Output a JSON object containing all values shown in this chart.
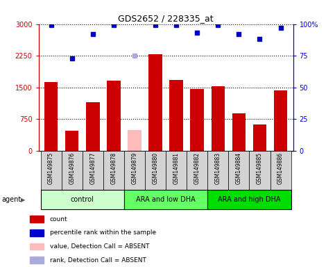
{
  "title": "GDS2652 / 228335_at",
  "samples": [
    "GSM149875",
    "GSM149876",
    "GSM149877",
    "GSM149878",
    "GSM149879",
    "GSM149880",
    "GSM149881",
    "GSM149882",
    "GSM149883",
    "GSM149884",
    "GSM149885",
    "GSM149886"
  ],
  "bar_values": [
    1620,
    480,
    1150,
    1660,
    500,
    2280,
    1680,
    1460,
    1530,
    880,
    620,
    1430
  ],
  "bar_colors": [
    "#cc0000",
    "#cc0000",
    "#cc0000",
    "#cc0000",
    "#ffbbbb",
    "#cc0000",
    "#cc0000",
    "#cc0000",
    "#cc0000",
    "#cc0000",
    "#cc0000",
    "#cc0000"
  ],
  "dot_values": [
    99,
    73,
    92,
    99,
    75,
    99,
    99,
    93,
    99,
    92,
    88,
    97
  ],
  "dot_colors": [
    "#0000cc",
    "#0000cc",
    "#0000cc",
    "#0000cc",
    "#aaaadd",
    "#0000cc",
    "#0000cc",
    "#0000cc",
    "#0000cc",
    "#0000cc",
    "#0000cc",
    "#0000cc"
  ],
  "ylim_left": [
    0,
    3000
  ],
  "ylim_right": [
    0,
    100
  ],
  "yticks_left": [
    0,
    750,
    1500,
    2250,
    3000
  ],
  "yticks_right": [
    0,
    25,
    50,
    75,
    100
  ],
  "ytick_labels_left": [
    "0",
    "750",
    "1500",
    "2250",
    "3000"
  ],
  "ytick_labels_right": [
    "0",
    "25",
    "50",
    "75",
    "100%"
  ],
  "groups": [
    {
      "label": "control",
      "start": 0,
      "end": 3,
      "color": "#ccffcc"
    },
    {
      "label": "ARA and low DHA",
      "start": 4,
      "end": 7,
      "color": "#66ff66"
    },
    {
      "label": "ARA and high DHA",
      "start": 8,
      "end": 11,
      "color": "#00dd00"
    }
  ],
  "agent_label": "agent",
  "legend_items": [
    {
      "color": "#cc0000",
      "label": "count"
    },
    {
      "color": "#0000cc",
      "label": "percentile rank within the sample"
    },
    {
      "color": "#ffbbbb",
      "label": "value, Detection Call = ABSENT"
    },
    {
      "color": "#aaaadd",
      "label": "rank, Detection Call = ABSENT"
    }
  ],
  "bar_width": 0.65,
  "background_color": "#ffffff",
  "tick_area_color": "#d3d3d3",
  "left_axis_color": "#cc0000",
  "right_axis_color": "#0000cc"
}
